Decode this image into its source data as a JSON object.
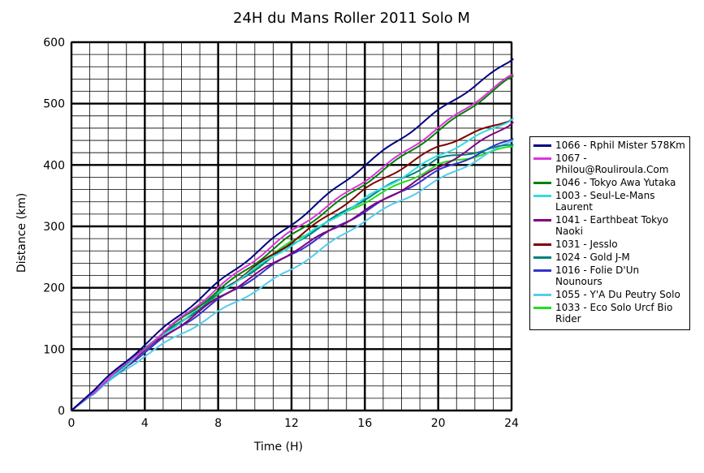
{
  "chart_data": {
    "type": "line",
    "title": "24H du Mans Roller 2011  Solo M",
    "xlabel": "Time (H)",
    "ylabel": "Distance (km)",
    "xlim": [
      0,
      24
    ],
    "ylim": [
      0,
      600
    ],
    "xticks": [
      0,
      4,
      8,
      12,
      16,
      20,
      24
    ],
    "yticks": [
      0,
      100,
      200,
      300,
      400,
      500,
      600
    ],
    "grid": true,
    "legend_position": "right",
    "series": [
      {
        "name": "1066 - Rphil Mister 578Km",
        "color": "#000080",
        "x": [
          0,
          4,
          8,
          12,
          16,
          20,
          24.1
        ],
        "y": [
          0,
          108,
          208,
          303,
          400,
          488,
          573
        ]
      },
      {
        "name": "1067 - Philou@Rouliroula.Com",
        "color": "#dd33dd",
        "x": [
          0,
          4,
          8,
          12,
          16,
          20,
          24.1
        ],
        "y": [
          0,
          102,
          200,
          292,
          375,
          460,
          548
        ]
      },
      {
        "name": "1046 - Tokyo Awa Yutaka",
        "color": "#008000",
        "x": [
          0,
          4,
          8,
          12,
          16,
          20,
          24.1
        ],
        "y": [
          0,
          103,
          195,
          285,
          370,
          455,
          545
        ]
      },
      {
        "name": "1003 - Seul-Le-Mans Laurent",
        "color": "#33dddd",
        "x": [
          0,
          4,
          8,
          12,
          16,
          20,
          24.1
        ],
        "y": [
          0,
          100,
          192,
          270,
          345,
          415,
          476
        ]
      },
      {
        "name": "1041 - Earthbeat Tokyo Naoki",
        "color": "#800080",
        "x": [
          0,
          4,
          8,
          12,
          16,
          20,
          24.1
        ],
        "y": [
          0,
          98,
          183,
          258,
          325,
          395,
          470
        ]
      },
      {
        "name": "1031 - Jesslo",
        "color": "#800000",
        "x": [
          0,
          4,
          8,
          12,
          16,
          20,
          24.1
        ],
        "y": [
          0,
          100,
          192,
          275,
          360,
          430,
          476
        ]
      },
      {
        "name": "1024 - Gold J-M",
        "color": "#008080",
        "x": [
          0,
          4,
          8,
          12,
          16,
          20,
          24.1
        ],
        "y": [
          0,
          100,
          190,
          270,
          345,
          410,
          433
        ]
      },
      {
        "name": "1016 - Folie D'Un Nounours",
        "color": "#3333cc",
        "x": [
          0,
          4,
          8,
          12,
          16,
          20,
          24.1
        ],
        "y": [
          0,
          96,
          180,
          255,
          325,
          390,
          443
        ]
      },
      {
        "name": "1055 - Y'A Du Peutry Solo",
        "color": "#55ccee",
        "x": [
          0,
          4,
          8,
          12,
          16,
          20,
          24.1
        ],
        "y": [
          0,
          90,
          160,
          230,
          310,
          375,
          440
        ]
      },
      {
        "name": "1033 - Eco Solo Urcf Bio Rider",
        "color": "#22dd22",
        "x": [
          0,
          4,
          8,
          12,
          16,
          20,
          24.1
        ],
        "y": [
          0,
          100,
          188,
          275,
          340,
          400,
          430
        ]
      }
    ]
  }
}
